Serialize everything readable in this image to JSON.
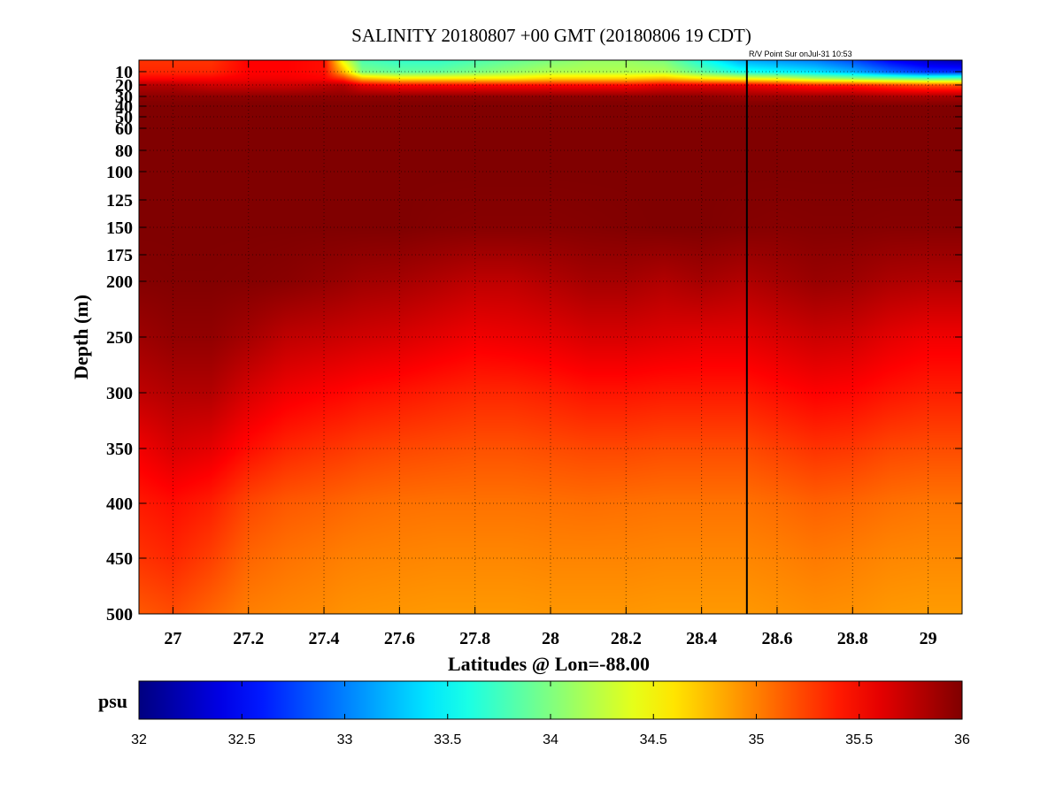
{
  "chart_data": {
    "type": "heatmap",
    "title": "SALINITY 20180807 +00 GMT (20180806 19 CDT)",
    "annotation": "R/V Point Sur onJul-31 10:53",
    "xlabel": "Latitudes @ Lon=-88.00",
    "ylabel": "Depth (m)",
    "xlim": [
      26.91,
      29.09
    ],
    "ylim": [
      5,
      500
    ],
    "y_scale": "piecewise",
    "y_reversed": true,
    "x_ticks": [
      27,
      27.2,
      27.4,
      27.6,
      27.8,
      28,
      28.2,
      28.4,
      28.6,
      28.8,
      29
    ],
    "x_tick_labels": [
      "27",
      "27.2",
      "27.4",
      "27.6",
      "27.8",
      "28",
      "28.2",
      "28.4",
      "28.6",
      "28.8",
      "29"
    ],
    "y_ticks": [
      10,
      20,
      30,
      40,
      50,
      60,
      80,
      100,
      125,
      150,
      175,
      200,
      250,
      300,
      350,
      400,
      450,
      500
    ],
    "y_tick_labels": [
      "10",
      "20",
      "30",
      "40",
      "50",
      "60",
      "80",
      "100",
      "125",
      "150",
      "175",
      "200",
      "250",
      "300",
      "350",
      "400",
      "450",
      "500"
    ],
    "grid": true,
    "colormap": "jet",
    "vertical_marker_lat": 28.52,
    "colorbar": {
      "label": "psu",
      "range": [
        32,
        36
      ],
      "ticks": [
        32,
        32.5,
        33,
        33.5,
        34,
        34.5,
        35,
        35.5,
        36
      ],
      "tick_labels": [
        "32",
        "32.5",
        "33",
        "33.5",
        "34",
        "34.5",
        "35",
        "35.5",
        "36"
      ],
      "colors": [
        "#00008f",
        "#0000ff",
        "#00ffff",
        "#ffff00",
        "#ff0000",
        "#800000"
      ]
    },
    "lat_grid": [
      26.91,
      27.0,
      27.1,
      27.2,
      27.3,
      27.4,
      27.45,
      27.5,
      27.6,
      27.7,
      27.8,
      27.9,
      28.0,
      28.1,
      28.2,
      28.3,
      28.4,
      28.5,
      28.6,
      28.7,
      28.8,
      28.9,
      29.0,
      29.09
    ],
    "depth_grid": [
      5,
      10,
      15,
      20,
      30,
      40,
      60,
      100,
      150,
      200,
      250,
      300,
      350,
      400,
      450,
      500
    ],
    "salinity": [
      [
        35.3,
        35.3,
        35.3,
        35.5,
        35.5,
        35.45,
        34.4,
        33.8,
        33.7,
        33.7,
        33.8,
        33.9,
        34.0,
        34.1,
        34.1,
        34.0,
        33.6,
        33.2,
        33.1,
        33.0,
        32.8,
        32.5,
        32.3,
        32.2
      ],
      [
        35.35,
        35.35,
        35.35,
        35.5,
        35.5,
        35.45,
        34.8,
        34.0,
        33.9,
        33.9,
        34.0,
        34.1,
        34.2,
        34.2,
        34.2,
        34.2,
        33.9,
        33.6,
        33.5,
        33.4,
        33.2,
        32.9,
        32.7,
        32.7
      ],
      [
        35.5,
        35.5,
        35.5,
        35.55,
        35.55,
        35.5,
        35.3,
        34.8,
        34.6,
        34.6,
        34.6,
        34.6,
        34.7,
        34.7,
        34.7,
        34.8,
        34.6,
        34.5,
        34.4,
        34.2,
        34.1,
        34.0,
        33.9,
        33.9
      ],
      [
        35.8,
        35.8,
        35.7,
        35.7,
        35.7,
        35.75,
        35.8,
        35.6,
        35.5,
        35.5,
        35.5,
        35.5,
        35.5,
        35.5,
        35.5,
        35.6,
        35.6,
        35.6,
        35.5,
        35.4,
        35.4,
        35.3,
        35.2,
        35.2
      ],
      [
        35.95,
        35.95,
        35.95,
        35.95,
        35.95,
        35.95,
        35.95,
        35.95,
        35.95,
        35.95,
        35.95,
        35.95,
        35.95,
        35.95,
        35.95,
        35.95,
        35.95,
        35.9,
        35.9,
        35.9,
        35.9,
        35.85,
        35.85,
        35.85
      ],
      [
        36.0,
        36.0,
        36.0,
        36.0,
        36.0,
        36.0,
        36.0,
        36.0,
        36.0,
        36.0,
        36.0,
        36.0,
        36.0,
        36.0,
        36.0,
        36.0,
        36.0,
        36.0,
        36.0,
        36.0,
        36.0,
        36.0,
        36.0,
        36.0
      ],
      [
        36.0,
        36.0,
        36.0,
        36.0,
        36.0,
        36.0,
        36.0,
        36.0,
        36.0,
        36.0,
        36.0,
        36.0,
        36.0,
        36.0,
        36.0,
        36.0,
        36.0,
        36.0,
        36.0,
        36.0,
        36.0,
        36.0,
        36.0,
        36.0
      ],
      [
        36.0,
        36.0,
        36.0,
        36.0,
        36.0,
        36.0,
        36.0,
        36.0,
        36.0,
        36.0,
        36.0,
        36.0,
        36.0,
        36.0,
        36.0,
        36.0,
        36.0,
        36.0,
        36.0,
        36.0,
        36.0,
        36.0,
        36.0,
        36.0
      ],
      [
        36.0,
        36.0,
        36.0,
        36.0,
        36.0,
        36.0,
        36.0,
        36.0,
        36.0,
        35.98,
        35.97,
        35.97,
        35.97,
        35.98,
        35.99,
        36.0,
        36.0,
        35.98,
        35.97,
        35.98,
        35.98,
        35.97,
        35.97,
        35.97
      ],
      [
        35.98,
        35.99,
        35.99,
        35.98,
        35.96,
        35.92,
        35.9,
        35.87,
        35.85,
        35.8,
        35.75,
        35.75,
        35.8,
        35.85,
        35.85,
        35.8,
        35.85,
        35.8,
        35.85,
        35.9,
        35.88,
        35.82,
        35.8,
        35.8
      ],
      [
        35.88,
        35.93,
        35.93,
        35.85,
        35.75,
        35.72,
        35.7,
        35.68,
        35.65,
        35.6,
        35.55,
        35.57,
        35.6,
        35.65,
        35.65,
        35.62,
        35.6,
        35.6,
        35.65,
        35.7,
        35.68,
        35.6,
        35.55,
        35.55
      ],
      [
        35.75,
        35.8,
        35.8,
        35.65,
        35.55,
        35.5,
        35.48,
        35.45,
        35.42,
        35.38,
        35.35,
        35.35,
        35.38,
        35.42,
        35.42,
        35.4,
        35.4,
        35.4,
        35.45,
        35.5,
        35.48,
        35.42,
        35.38,
        35.38
      ],
      [
        35.55,
        35.65,
        35.6,
        35.45,
        35.35,
        35.3,
        35.28,
        35.25,
        35.22,
        35.2,
        35.18,
        35.18,
        35.2,
        35.22,
        35.22,
        35.2,
        35.2,
        35.2,
        35.25,
        35.3,
        35.28,
        35.22,
        35.2,
        35.2
      ],
      [
        35.4,
        35.45,
        35.38,
        35.22,
        35.15,
        35.12,
        35.1,
        35.08,
        35.06,
        35.05,
        35.05,
        35.05,
        35.06,
        35.07,
        35.06,
        35.05,
        35.05,
        35.05,
        35.08,
        35.12,
        35.1,
        35.06,
        35.04,
        35.04
      ],
      [
        35.3,
        35.35,
        35.25,
        35.1,
        35.05,
        35.02,
        35.0,
        34.99,
        34.98,
        34.97,
        34.97,
        34.97,
        34.98,
        34.98,
        34.98,
        34.97,
        34.97,
        34.97,
        34.99,
        35.02,
        35.0,
        34.97,
        34.96,
        34.96
      ],
      [
        35.15,
        35.2,
        35.1,
        35.0,
        34.97,
        34.95,
        34.93,
        34.92,
        34.91,
        34.9,
        34.9,
        34.9,
        34.91,
        34.91,
        34.91,
        34.9,
        34.9,
        34.9,
        34.92,
        34.94,
        34.93,
        34.9,
        34.89,
        34.89
      ]
    ]
  }
}
